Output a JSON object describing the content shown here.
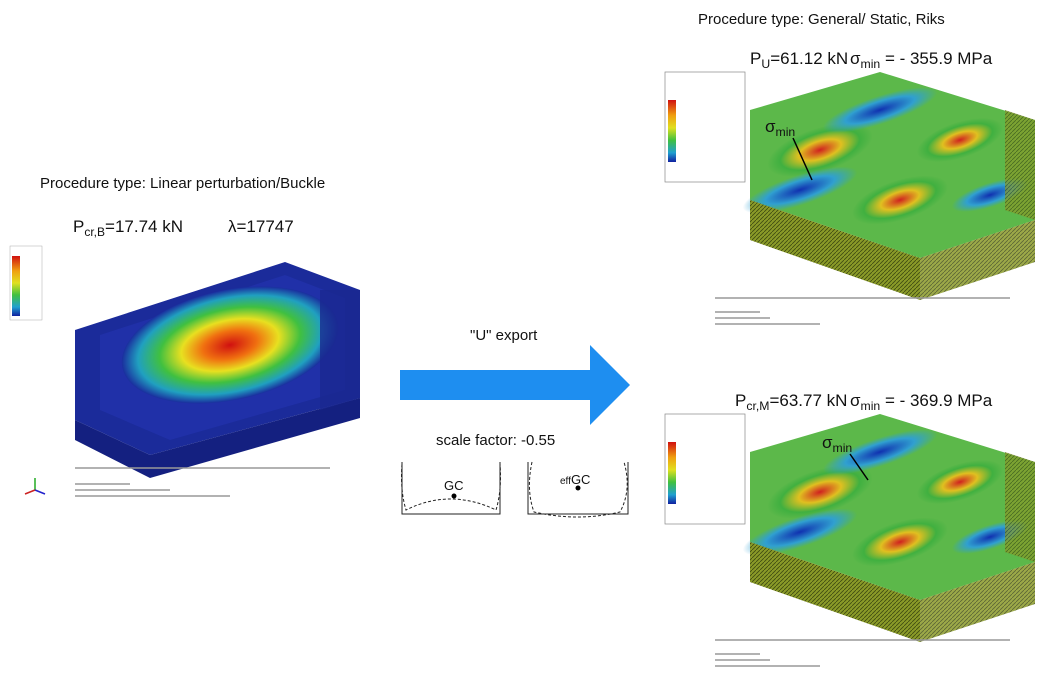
{
  "left": {
    "title": "Procedure type: Linear perturbation/Buckle",
    "load": {
      "symbol": "P",
      "subscript": "cr,B",
      "value": "=17.74 kN"
    },
    "eigen": {
      "symbol": "λ",
      "value": "=17747"
    }
  },
  "middle": {
    "export_label": "\"U\" export",
    "scale_factor": "scale factor: -0.55",
    "gc_label": "GC",
    "eff_prefix": "eff",
    "eff_gc_label": "GC"
  },
  "right": {
    "title": "Procedure type: General/ Static, Riks",
    "top": {
      "load": {
        "symbol": "P",
        "subscript": "U",
        "value": "=61.12 kN"
      },
      "stress": {
        "symbol": "σ",
        "subscript": "min",
        "value": " = - 355.9 MPa"
      },
      "annotation": {
        "symbol": "σ",
        "subscript": "min"
      }
    },
    "bottom": {
      "load": {
        "symbol": "P",
        "subscript": "cr,M",
        "value": "=63.77 kN"
      },
      "stress": {
        "symbol": "σ",
        "subscript": "min",
        "value": " = - 369.9 MPa"
      },
      "annotation": {
        "symbol": "σ",
        "subscript": "min"
      }
    }
  }
}
